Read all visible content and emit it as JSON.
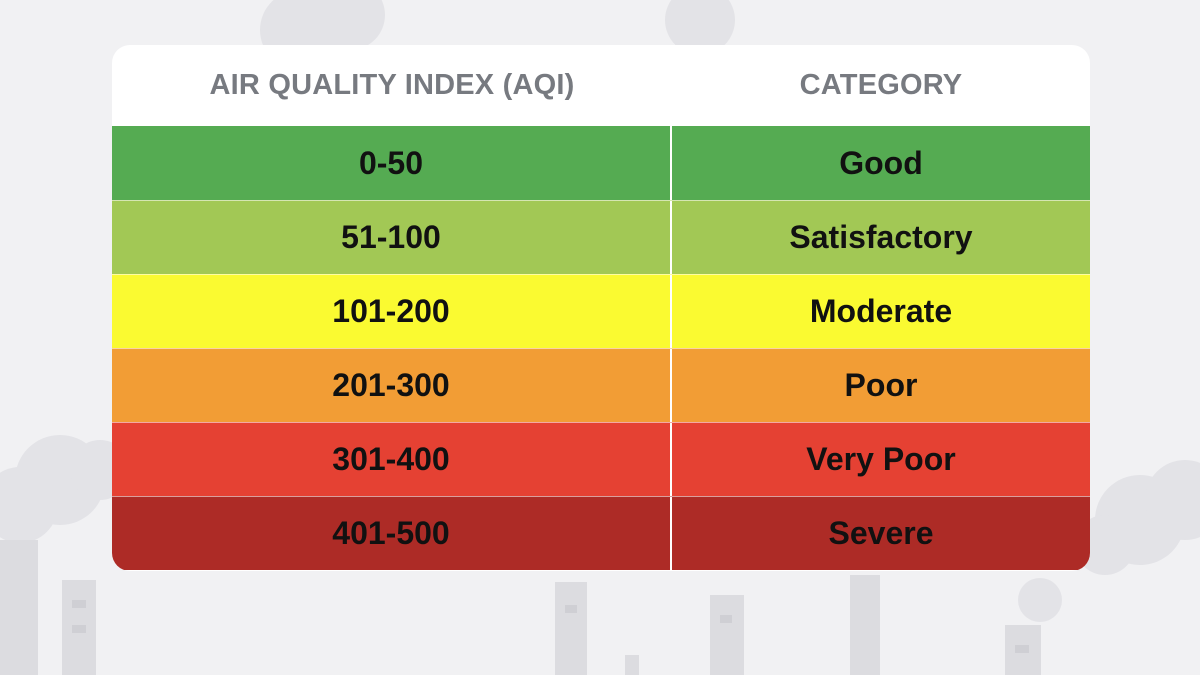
{
  "table": {
    "headers": [
      "AIR QUALITY INDEX (AQI)",
      "CATEGORY"
    ],
    "rows": [
      {
        "range": "0-50",
        "category": "Good",
        "color": "#55ab52"
      },
      {
        "range": "51-100",
        "category": "Satisfactory",
        "color": "#a2c855"
      },
      {
        "range": "101-200",
        "category": "Moderate",
        "color": "#fafa31"
      },
      {
        "range": "201-300",
        "category": "Poor",
        "color": "#f29d35"
      },
      {
        "range": "301-400",
        "category": "Very Poor",
        "color": "#e54133"
      },
      {
        "range": "401-500",
        "category": "Severe",
        "color": "#ad2b26"
      }
    ]
  },
  "background": {
    "illustration": "factory-smokestacks-and-smoke",
    "color": "#f1f1f3",
    "shape_color": "#e2e2e6"
  }
}
